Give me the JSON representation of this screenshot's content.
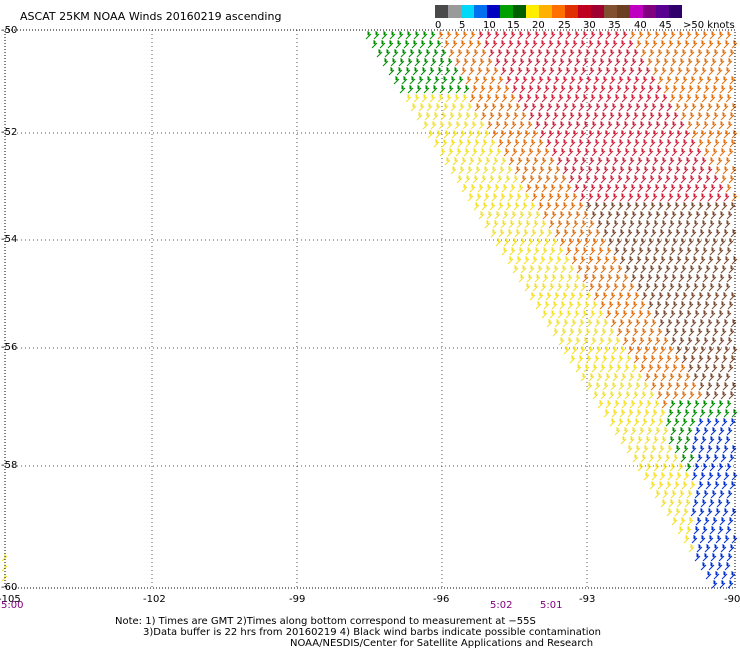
{
  "title": "ASCAT 25KM NOAA Winds 20160219 ascending",
  "legend": {
    "labels": [
      "0",
      "5",
      "10",
      "15",
      "20",
      "25",
      "30",
      "35",
      "40",
      "45",
      ">50 knots"
    ],
    "colors": [
      "#4a4a4a",
      "#9a9a9a",
      "#00d8f8",
      "#0070f0",
      "#0000c0",
      "#00a000",
      "#006000",
      "#ffee00",
      "#ffb000",
      "#ff7000",
      "#e03000",
      "#c00020",
      "#a00030",
      "#805030",
      "#6a4020",
      "#c000c0",
      "#800080",
      "#5a0090",
      "#30006a"
    ]
  },
  "axes": {
    "lat_labels": [
      "-50",
      "-52",
      "-54",
      "-56",
      "-58",
      "-60"
    ],
    "lon_labels": [
      "-105",
      "-102",
      "-99",
      "-96",
      "-93",
      "-90"
    ]
  },
  "times": [
    "5:00",
    "5:02",
    "5:01"
  ],
  "notes": [
    "Note: 1) Times are GMT 2)Times along bottom correspond to measurement at −55S",
    "3)Data buffer is 22 hrs from 20160219 4) Black wind barbs indicate possible contamination",
    "NOAA/NESDIS/Center for Satellite Applications and Research"
  ],
  "swath_colors": {
    "green": "#008c00",
    "yellow": "#f2e02a",
    "orange": "#e07010",
    "red": "#d0203a",
    "brown": "#7a4a30",
    "blue": "#0030d0"
  }
}
